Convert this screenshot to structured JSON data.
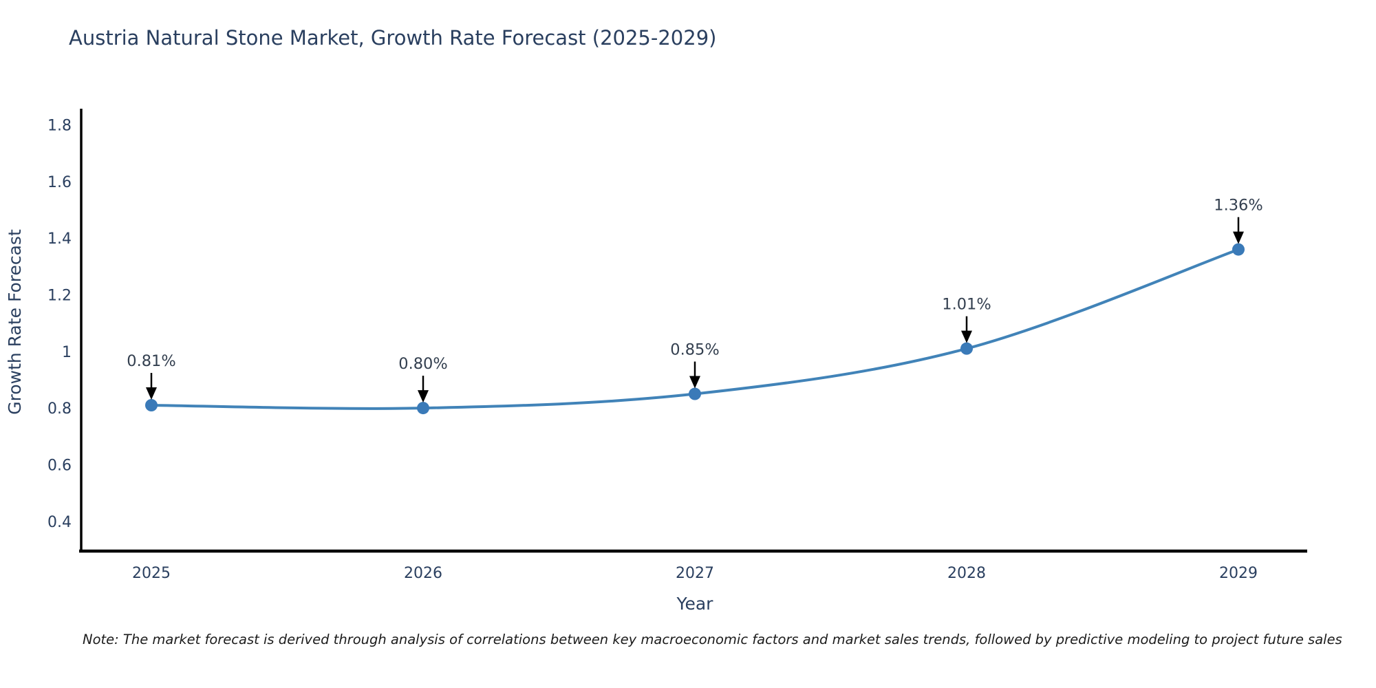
{
  "chart_data": {
    "type": "line",
    "title": "Austria Natural Stone Market, Growth Rate Forecast (2025-2029)",
    "xlabel": "Year",
    "ylabel": "Growth Rate Forecast",
    "categories": [
      "2025",
      "2026",
      "2027",
      "2028",
      "2029"
    ],
    "values": [
      0.81,
      0.8,
      0.85,
      1.01,
      1.36
    ],
    "point_labels": [
      "0.81%",
      "0.80%",
      "0.85%",
      "1.01%",
      "1.36%"
    ],
    "yticks": [
      0.4,
      0.6,
      0.8,
      1,
      1.2,
      1.4,
      1.6,
      1.8
    ],
    "ytick_labels": [
      "0.4",
      "0.6",
      "0.8",
      "1",
      "1.2",
      "1.4",
      "1.6",
      "1.8"
    ],
    "ylim": [
      0.295,
      1.857
    ],
    "grid": false,
    "legend_position": "none",
    "line_color": "#4183b8",
    "marker_color": "#3a7ab8",
    "annotation_color": "#333f4f",
    "axis_color": "#000000",
    "tick_color": "#2a3f5f",
    "title_color": "#2a3f5f"
  },
  "note": "Note: The market forecast is derived through analysis of correlations between key macroeconomic factors and market sales trends, followed by predictive modeling to project future sales"
}
